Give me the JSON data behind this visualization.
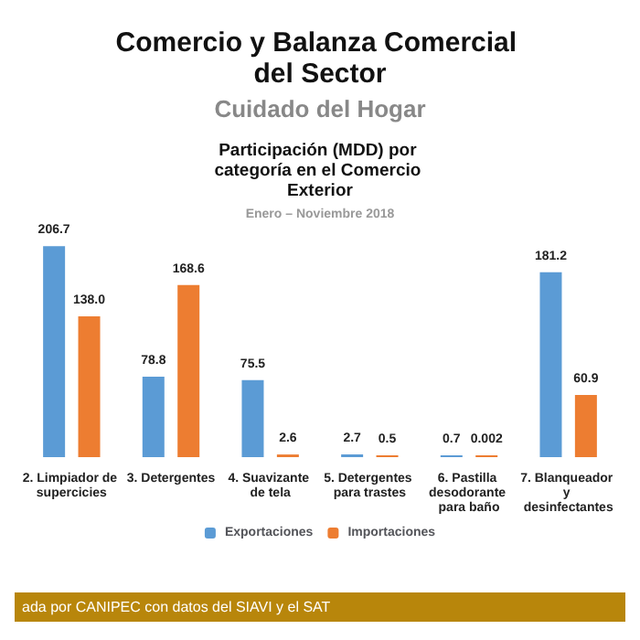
{
  "chart_data": {
    "type": "bar",
    "title": "Comercio y Balanza Comercial del Sector",
    "subtitle": "Cuidado del Hogar",
    "annotations": [
      "Participación (MDD) por categoría en el Comercio Exterior",
      "Enero – Noviembre 2018",
      "ada por CANIPEC con datos del SIAVI y el SAT"
    ],
    "categories": [
      "2. Limpiador de supercicies",
      "3. Detergentes",
      "4. Suavizante de tela",
      "5. Detergentes para trastes",
      "6. Pastilla desodorante para baño",
      "7. Blanqueador y desinfectantes"
    ],
    "series": [
      {
        "name": "Exportaciones",
        "color": "#5b9bd5",
        "values": [
          206.7,
          78.8,
          75.5,
          2.7,
          0.7,
          181.2
        ],
        "value_labels": [
          "206.7",
          "78.8",
          "75.5",
          "2.7",
          "0.7",
          "181.2"
        ]
      },
      {
        "name": "Importaciones",
        "color": "#ed7d31",
        "values": [
          138.0,
          168.6,
          2.6,
          0.5,
          0.002,
          60.9
        ],
        "value_labels": [
          "138.0",
          "168.6",
          "2.6",
          "0.5",
          "0.002",
          "60.9"
        ]
      }
    ],
    "legend": "bottom"
  }
}
